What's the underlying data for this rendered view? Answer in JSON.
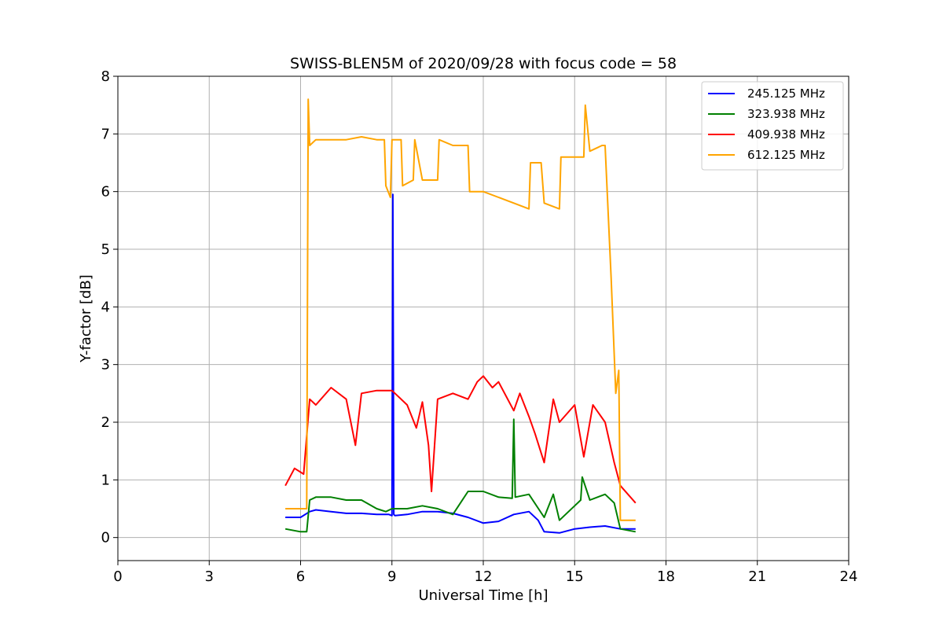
{
  "chart_data": {
    "type": "line",
    "title": "SWISS-BLEN5M of 2020/09/28 with focus code = 58",
    "xlabel": "Universal Time [h]",
    "ylabel": "Y-factor [dB]",
    "xlim": [
      0,
      24
    ],
    "ylim": [
      -0.4,
      8.0
    ],
    "xticks": [
      0,
      3,
      6,
      9,
      12,
      15,
      18,
      21,
      24
    ],
    "yticks": [
      0,
      1,
      2,
      3,
      4,
      5,
      6,
      7,
      8
    ],
    "grid": true,
    "legend_position": "top-right",
    "series": [
      {
        "name": "245.125 MHz",
        "color": "#0000ff",
        "x": [
          5.5,
          6.0,
          6.3,
          6.5,
          7.0,
          7.5,
          8.0,
          8.5,
          8.9,
          9.0,
          9.03,
          9.06,
          9.1,
          9.5,
          10.0,
          10.5,
          11.0,
          11.5,
          12.0,
          12.5,
          13.0,
          13.5,
          13.8,
          14.0,
          14.5,
          15.0,
          15.5,
          16.0,
          16.5,
          17.0
        ],
        "y": [
          0.35,
          0.35,
          0.45,
          0.48,
          0.45,
          0.42,
          0.42,
          0.4,
          0.4,
          0.38,
          5.95,
          0.4,
          0.38,
          0.4,
          0.45,
          0.45,
          0.42,
          0.35,
          0.25,
          0.28,
          0.4,
          0.45,
          0.3,
          0.1,
          0.08,
          0.15,
          0.18,
          0.2,
          0.15,
          0.15
        ]
      },
      {
        "name": "323.938 MHz",
        "color": "#008000",
        "x": [
          5.5,
          6.0,
          6.2,
          6.3,
          6.5,
          7.0,
          7.5,
          8.0,
          8.5,
          8.8,
          9.0,
          9.5,
          10.0,
          10.5,
          11.0,
          11.5,
          12.0,
          12.5,
          12.95,
          13.0,
          13.05,
          13.5,
          14.0,
          14.3,
          14.5,
          15.0,
          15.2,
          15.25,
          15.5,
          16.0,
          16.3,
          16.5,
          17.0
        ],
        "y": [
          0.15,
          0.1,
          0.1,
          0.65,
          0.7,
          0.7,
          0.65,
          0.65,
          0.5,
          0.45,
          0.5,
          0.5,
          0.55,
          0.5,
          0.4,
          0.8,
          0.8,
          0.7,
          0.68,
          2.05,
          0.7,
          0.75,
          0.35,
          0.75,
          0.3,
          0.55,
          0.65,
          1.05,
          0.65,
          0.75,
          0.6,
          0.15,
          0.1
        ]
      },
      {
        "name": "409.938 MHz",
        "color": "#ff0000",
        "x": [
          5.5,
          5.8,
          6.1,
          6.3,
          6.5,
          7.0,
          7.5,
          7.8,
          8.0,
          8.5,
          9.0,
          9.5,
          9.8,
          10.0,
          10.2,
          10.3,
          10.5,
          11.0,
          11.5,
          11.8,
          12.0,
          12.3,
          12.5,
          13.0,
          13.2,
          13.5,
          13.7,
          14.0,
          14.3,
          14.5,
          15.0,
          15.3,
          15.6,
          16.0,
          16.3,
          16.5,
          17.0
        ],
        "y": [
          0.9,
          1.2,
          1.1,
          2.4,
          2.3,
          2.6,
          2.4,
          1.6,
          2.5,
          2.55,
          2.55,
          2.3,
          1.9,
          2.35,
          1.6,
          0.8,
          2.4,
          2.5,
          2.4,
          2.7,
          2.8,
          2.6,
          2.7,
          2.2,
          2.5,
          2.1,
          1.8,
          1.3,
          2.4,
          2.0,
          2.3,
          1.4,
          2.3,
          2.0,
          1.3,
          0.9,
          0.6
        ]
      },
      {
        "name": "612.125 MHz",
        "color": "#ffa500",
        "x": [
          5.5,
          6.0,
          6.2,
          6.25,
          6.3,
          6.5,
          7.0,
          7.5,
          8.0,
          8.5,
          8.75,
          8.8,
          8.95,
          9.0,
          9.3,
          9.35,
          9.7,
          9.75,
          10.0,
          10.5,
          10.55,
          11.0,
          11.5,
          11.55,
          12.0,
          12.5,
          13.0,
          13.5,
          13.55,
          13.9,
          14.0,
          14.5,
          14.55,
          15.0,
          15.3,
          15.35,
          15.5,
          15.9,
          16.0,
          16.2,
          16.35,
          16.45,
          16.5,
          17.0
        ],
        "y": [
          0.5,
          0.5,
          0.5,
          7.6,
          6.8,
          6.9,
          6.9,
          6.9,
          6.95,
          6.9,
          6.9,
          6.1,
          5.9,
          6.9,
          6.9,
          6.1,
          6.2,
          6.9,
          6.2,
          6.2,
          6.9,
          6.8,
          6.8,
          6.0,
          6.0,
          5.9,
          5.8,
          5.7,
          6.5,
          6.5,
          5.8,
          5.7,
          6.6,
          6.6,
          6.6,
          7.5,
          6.7,
          6.8,
          6.8,
          4.5,
          2.5,
          2.9,
          0.3,
          0.3
        ]
      }
    ]
  }
}
